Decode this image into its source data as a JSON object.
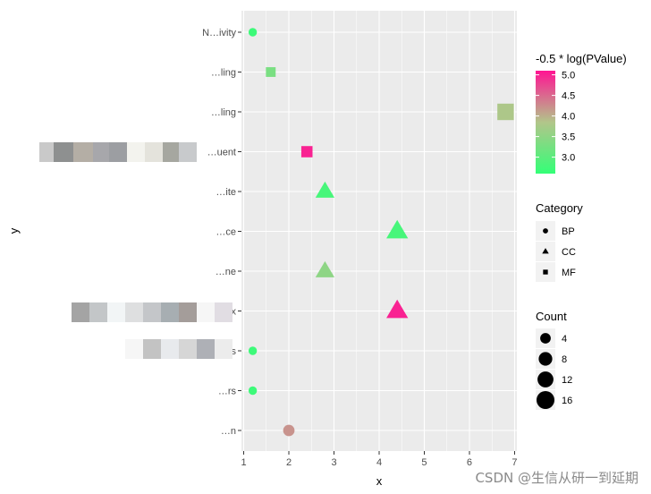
{
  "chart_data": {
    "type": "scatter",
    "xlabel": "x",
    "ylabel": "y",
    "xlim": [
      0.95,
      7.05
    ],
    "x_ticks": [
      1,
      2,
      3,
      4,
      5,
      6,
      7
    ],
    "grid": true,
    "categories": [
      "N…ivity",
      "…ling",
      "…ling",
      "…uent",
      "…ite",
      "…ce",
      "…ne",
      "…x",
      "…s",
      "…rs",
      "…n"
    ],
    "points": [
      {
        "y_index": 0,
        "x": 1.2,
        "count": 2,
        "category": "BP",
        "pvalue": 2.7
      },
      {
        "y_index": 1,
        "x": 1.6,
        "count": 4,
        "category": "MF",
        "pvalue": 3.3
      },
      {
        "y_index": 2,
        "x": 6.8,
        "count": 16,
        "category": "MF",
        "pvalue": 3.8
      },
      {
        "y_index": 3,
        "x": 2.4,
        "count": 6,
        "category": "MF",
        "pvalue": 5.0
      },
      {
        "y_index": 4,
        "x": 2.8,
        "count": 10,
        "category": "CC",
        "pvalue": 2.8
      },
      {
        "y_index": 5,
        "x": 4.4,
        "count": 14,
        "category": "CC",
        "pvalue": 2.8
      },
      {
        "y_index": 6,
        "x": 2.8,
        "count": 10,
        "category": "CC",
        "pvalue": 3.5
      },
      {
        "y_index": 7,
        "x": 4.4,
        "count": 14,
        "category": "CC",
        "pvalue": 5.0
      },
      {
        "y_index": 8,
        "x": 1.2,
        "count": 2,
        "category": "BP",
        "pvalue": 2.7
      },
      {
        "y_index": 9,
        "x": 1.2,
        "count": 2,
        "category": "BP",
        "pvalue": 2.7
      },
      {
        "y_index": 10,
        "x": 2.0,
        "count": 5,
        "category": "BP",
        "pvalue": 4.2
      }
    ],
    "color_legend": {
      "title": "-0.5 * log(PValue)",
      "ticks": [
        "5.0",
        "4.5",
        "4.0",
        "3.5",
        "3.0"
      ],
      "tick_values": [
        5.0,
        4.5,
        4.0,
        3.5,
        3.0
      ],
      "min": 2.6,
      "max": 5.1,
      "low_color": "#33FF77",
      "mid_color": "#B2C58A",
      "high_color": "#FF1493"
    },
    "shape_legend": {
      "title": "Category",
      "items": [
        {
          "label": "BP",
          "shape": "circle"
        },
        {
          "label": "CC",
          "shape": "triangle"
        },
        {
          "label": "MF",
          "shape": "square"
        }
      ]
    },
    "size_legend": {
      "title": "Count",
      "items": [
        {
          "label": "4",
          "value": 4
        },
        {
          "label": "8",
          "value": 8
        },
        {
          "label": "12",
          "value": 12
        },
        {
          "label": "16",
          "value": 16
        }
      ]
    }
  },
  "watermark": "CSDN @生信从研一到延期",
  "colors": {
    "panel": "#EBEBEB",
    "grid": "#FFFFFF",
    "tick_text": "#4D4D4D"
  }
}
